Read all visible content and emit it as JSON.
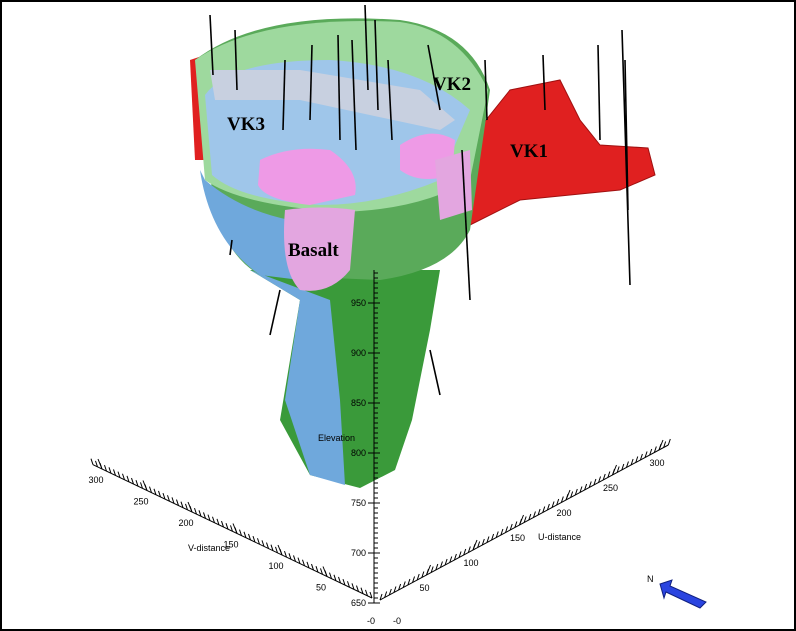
{
  "labels": {
    "vk1": "VK1",
    "vk2": "VK2",
    "vk3": "VK3",
    "basalt": "Basalt"
  },
  "axes": {
    "elevation": {
      "label": "Elevation",
      "ticks": [
        650,
        700,
        750,
        800,
        850,
        900,
        950
      ]
    },
    "u": {
      "label": "U-distance",
      "ticks": [
        50,
        100,
        150,
        200,
        250,
        300
      ]
    },
    "v": {
      "label": "V-distance",
      "ticks": [
        50,
        100,
        150,
        200,
        250,
        300
      ]
    },
    "origin_labels": [
      "-0",
      "-0"
    ]
  },
  "north": "N"
}
